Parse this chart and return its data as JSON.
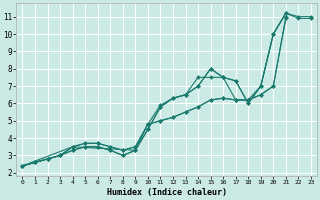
{
  "xlabel": "Humidex (Indice chaleur)",
  "background_color": "#cceae5",
  "grid_color": "#ffffff",
  "line_color": "#1a7a6e",
  "xlim": [
    -0.5,
    23.5
  ],
  "ylim": [
    1.8,
    11.8
  ],
  "xticks": [
    0,
    1,
    2,
    3,
    4,
    5,
    6,
    7,
    8,
    9,
    10,
    11,
    12,
    13,
    14,
    15,
    16,
    17,
    18,
    19,
    20,
    21,
    22,
    23
  ],
  "yticks": [
    2,
    3,
    4,
    5,
    6,
    7,
    8,
    9,
    10,
    11
  ],
  "lines": [
    {
      "x": [
        0,
        1,
        2,
        3,
        4,
        5,
        6,
        7,
        8,
        9,
        10,
        11,
        12,
        13,
        14,
        15,
        16,
        17,
        18,
        19,
        20,
        21,
        22,
        23
      ],
      "y": [
        2.4,
        2.6,
        2.8,
        3.0,
        3.3,
        3.5,
        3.5,
        3.3,
        3.0,
        3.3,
        4.5,
        5.8,
        6.3,
        6.5,
        7.0,
        8.0,
        7.5,
        7.3,
        6.0,
        7.0,
        10.0,
        11.2,
        11.0,
        11.0
      ]
    },
    {
      "x": [
        0,
        1,
        2,
        3,
        4,
        5,
        6,
        7,
        8,
        9,
        10,
        11,
        12,
        13,
        14,
        15,
        16,
        17,
        18,
        19,
        20,
        21
      ],
      "y": [
        2.4,
        2.6,
        2.8,
        3.0,
        3.5,
        3.7,
        3.7,
        3.5,
        3.3,
        3.5,
        4.8,
        5.0,
        5.2,
        5.5,
        5.8,
        6.2,
        6.3,
        6.2,
        6.2,
        6.5,
        7.0,
        11.0
      ]
    },
    {
      "x": [
        0,
        4,
        9,
        10,
        11,
        12,
        13,
        14,
        15,
        16,
        17,
        18,
        19,
        20,
        21
      ],
      "y": [
        2.4,
        3.5,
        3.3,
        4.8,
        5.9,
        6.3,
        6.5,
        7.5,
        7.5,
        7.5,
        6.2,
        6.2,
        7.0,
        10.0,
        11.2
      ]
    },
    {
      "x": [
        0,
        1,
        2,
        3,
        4,
        5,
        6,
        7,
        8,
        9,
        10,
        11,
        12,
        13,
        14,
        15,
        16,
        17,
        18,
        19,
        20,
        21
      ],
      "y": [
        2.4,
        2.6,
        2.8,
        3.0,
        3.5,
        3.7,
        3.7,
        3.5,
        3.3,
        3.5,
        4.8,
        5.0,
        5.2,
        5.5,
        5.8,
        6.2,
        6.3,
        6.2,
        6.2,
        6.5,
        7.0,
        10.9
      ]
    },
    {
      "x": [
        0,
        1,
        2,
        3,
        4,
        5,
        6,
        7,
        8,
        9,
        10,
        11,
        12,
        13,
        14,
        15,
        16,
        17,
        18,
        19,
        20,
        21,
        22,
        23
      ],
      "y": [
        2.4,
        2.6,
        2.8,
        3.0,
        3.3,
        3.5,
        3.5,
        3.3,
        3.0,
        3.3,
        4.5,
        5.8,
        6.3,
        6.5,
        7.0,
        8.0,
        7.5,
        7.3,
        6.0,
        7.0,
        10.0,
        11.2,
        10.9,
        10.9
      ]
    }
  ],
  "figsize": [
    3.2,
    2.0
  ],
  "dpi": 100
}
